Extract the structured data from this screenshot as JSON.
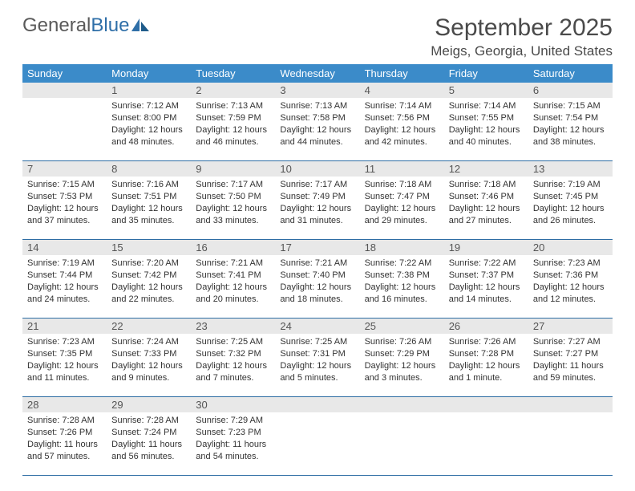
{
  "brand": {
    "part1": "General",
    "part2": "Blue"
  },
  "title": "September 2025",
  "location": "Meigs, Georgia, United States",
  "weekday_labels": [
    "Sunday",
    "Monday",
    "Tuesday",
    "Wednesday",
    "Thursday",
    "Friday",
    "Saturday"
  ],
  "colors": {
    "header_bg": "#3b8bc9",
    "header_fg": "#ffffff",
    "daynum_bg": "#e8e8e8",
    "rule": "#2e6da4",
    "text": "#333333",
    "title": "#4a4a4a",
    "logo_gray": "#6e6e6e",
    "logo_blue": "#2f6fa8"
  },
  "weeks": [
    [
      null,
      {
        "n": "1",
        "sr": "7:12 AM",
        "ss": "8:00 PM",
        "dl": "12 hours and 48 minutes."
      },
      {
        "n": "2",
        "sr": "7:13 AM",
        "ss": "7:59 PM",
        "dl": "12 hours and 46 minutes."
      },
      {
        "n": "3",
        "sr": "7:13 AM",
        "ss": "7:58 PM",
        "dl": "12 hours and 44 minutes."
      },
      {
        "n": "4",
        "sr": "7:14 AM",
        "ss": "7:56 PM",
        "dl": "12 hours and 42 minutes."
      },
      {
        "n": "5",
        "sr": "7:14 AM",
        "ss": "7:55 PM",
        "dl": "12 hours and 40 minutes."
      },
      {
        "n": "6",
        "sr": "7:15 AM",
        "ss": "7:54 PM",
        "dl": "12 hours and 38 minutes."
      }
    ],
    [
      {
        "n": "7",
        "sr": "7:15 AM",
        "ss": "7:53 PM",
        "dl": "12 hours and 37 minutes."
      },
      {
        "n": "8",
        "sr": "7:16 AM",
        "ss": "7:51 PM",
        "dl": "12 hours and 35 minutes."
      },
      {
        "n": "9",
        "sr": "7:17 AM",
        "ss": "7:50 PM",
        "dl": "12 hours and 33 minutes."
      },
      {
        "n": "10",
        "sr": "7:17 AM",
        "ss": "7:49 PM",
        "dl": "12 hours and 31 minutes."
      },
      {
        "n": "11",
        "sr": "7:18 AM",
        "ss": "7:47 PM",
        "dl": "12 hours and 29 minutes."
      },
      {
        "n": "12",
        "sr": "7:18 AM",
        "ss": "7:46 PM",
        "dl": "12 hours and 27 minutes."
      },
      {
        "n": "13",
        "sr": "7:19 AM",
        "ss": "7:45 PM",
        "dl": "12 hours and 26 minutes."
      }
    ],
    [
      {
        "n": "14",
        "sr": "7:19 AM",
        "ss": "7:44 PM",
        "dl": "12 hours and 24 minutes."
      },
      {
        "n": "15",
        "sr": "7:20 AM",
        "ss": "7:42 PM",
        "dl": "12 hours and 22 minutes."
      },
      {
        "n": "16",
        "sr": "7:21 AM",
        "ss": "7:41 PM",
        "dl": "12 hours and 20 minutes."
      },
      {
        "n": "17",
        "sr": "7:21 AM",
        "ss": "7:40 PM",
        "dl": "12 hours and 18 minutes."
      },
      {
        "n": "18",
        "sr": "7:22 AM",
        "ss": "7:38 PM",
        "dl": "12 hours and 16 minutes."
      },
      {
        "n": "19",
        "sr": "7:22 AM",
        "ss": "7:37 PM",
        "dl": "12 hours and 14 minutes."
      },
      {
        "n": "20",
        "sr": "7:23 AM",
        "ss": "7:36 PM",
        "dl": "12 hours and 12 minutes."
      }
    ],
    [
      {
        "n": "21",
        "sr": "7:23 AM",
        "ss": "7:35 PM",
        "dl": "12 hours and 11 minutes."
      },
      {
        "n": "22",
        "sr": "7:24 AM",
        "ss": "7:33 PM",
        "dl": "12 hours and 9 minutes."
      },
      {
        "n": "23",
        "sr": "7:25 AM",
        "ss": "7:32 PM",
        "dl": "12 hours and 7 minutes."
      },
      {
        "n": "24",
        "sr": "7:25 AM",
        "ss": "7:31 PM",
        "dl": "12 hours and 5 minutes."
      },
      {
        "n": "25",
        "sr": "7:26 AM",
        "ss": "7:29 PM",
        "dl": "12 hours and 3 minutes."
      },
      {
        "n": "26",
        "sr": "7:26 AM",
        "ss": "7:28 PM",
        "dl": "12 hours and 1 minute."
      },
      {
        "n": "27",
        "sr": "7:27 AM",
        "ss": "7:27 PM",
        "dl": "11 hours and 59 minutes."
      }
    ],
    [
      {
        "n": "28",
        "sr": "7:28 AM",
        "ss": "7:26 PM",
        "dl": "11 hours and 57 minutes."
      },
      {
        "n": "29",
        "sr": "7:28 AM",
        "ss": "7:24 PM",
        "dl": "11 hours and 56 minutes."
      },
      {
        "n": "30",
        "sr": "7:29 AM",
        "ss": "7:23 PM",
        "dl": "11 hours and 54 minutes."
      },
      null,
      null,
      null,
      null
    ]
  ],
  "labels": {
    "sunrise": "Sunrise:",
    "sunset": "Sunset:",
    "daylight": "Daylight:"
  }
}
